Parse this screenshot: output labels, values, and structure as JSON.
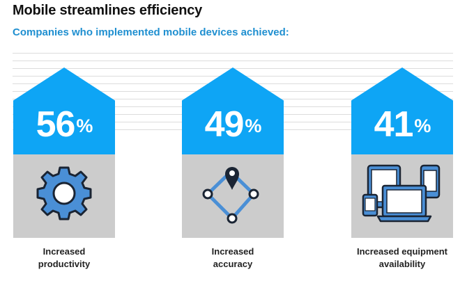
{
  "title": "Mobile streamlines efficiency",
  "subtitle": "Companies who implemented mobile devices achieved:",
  "colors": {
    "accent": "#0ea5f5",
    "panel": "#cccccc",
    "title": "#111111",
    "subtitle": "#1f8fd0",
    "icon_fill": "#4a8fd6",
    "icon_stroke": "#1a2433"
  },
  "stats": [
    {
      "value": "56",
      "unit": "%",
      "label_line1": "Increased",
      "label_line2": "productivity",
      "icon": "gear-icon"
    },
    {
      "value": "49",
      "unit": "%",
      "label_line1": "Increased",
      "label_line2": "accuracy",
      "icon": "route-map-icon"
    },
    {
      "value": "41",
      "unit": "%",
      "label_line1": "Increased equipment",
      "label_line2": "availability",
      "icon": "devices-icon"
    }
  ]
}
